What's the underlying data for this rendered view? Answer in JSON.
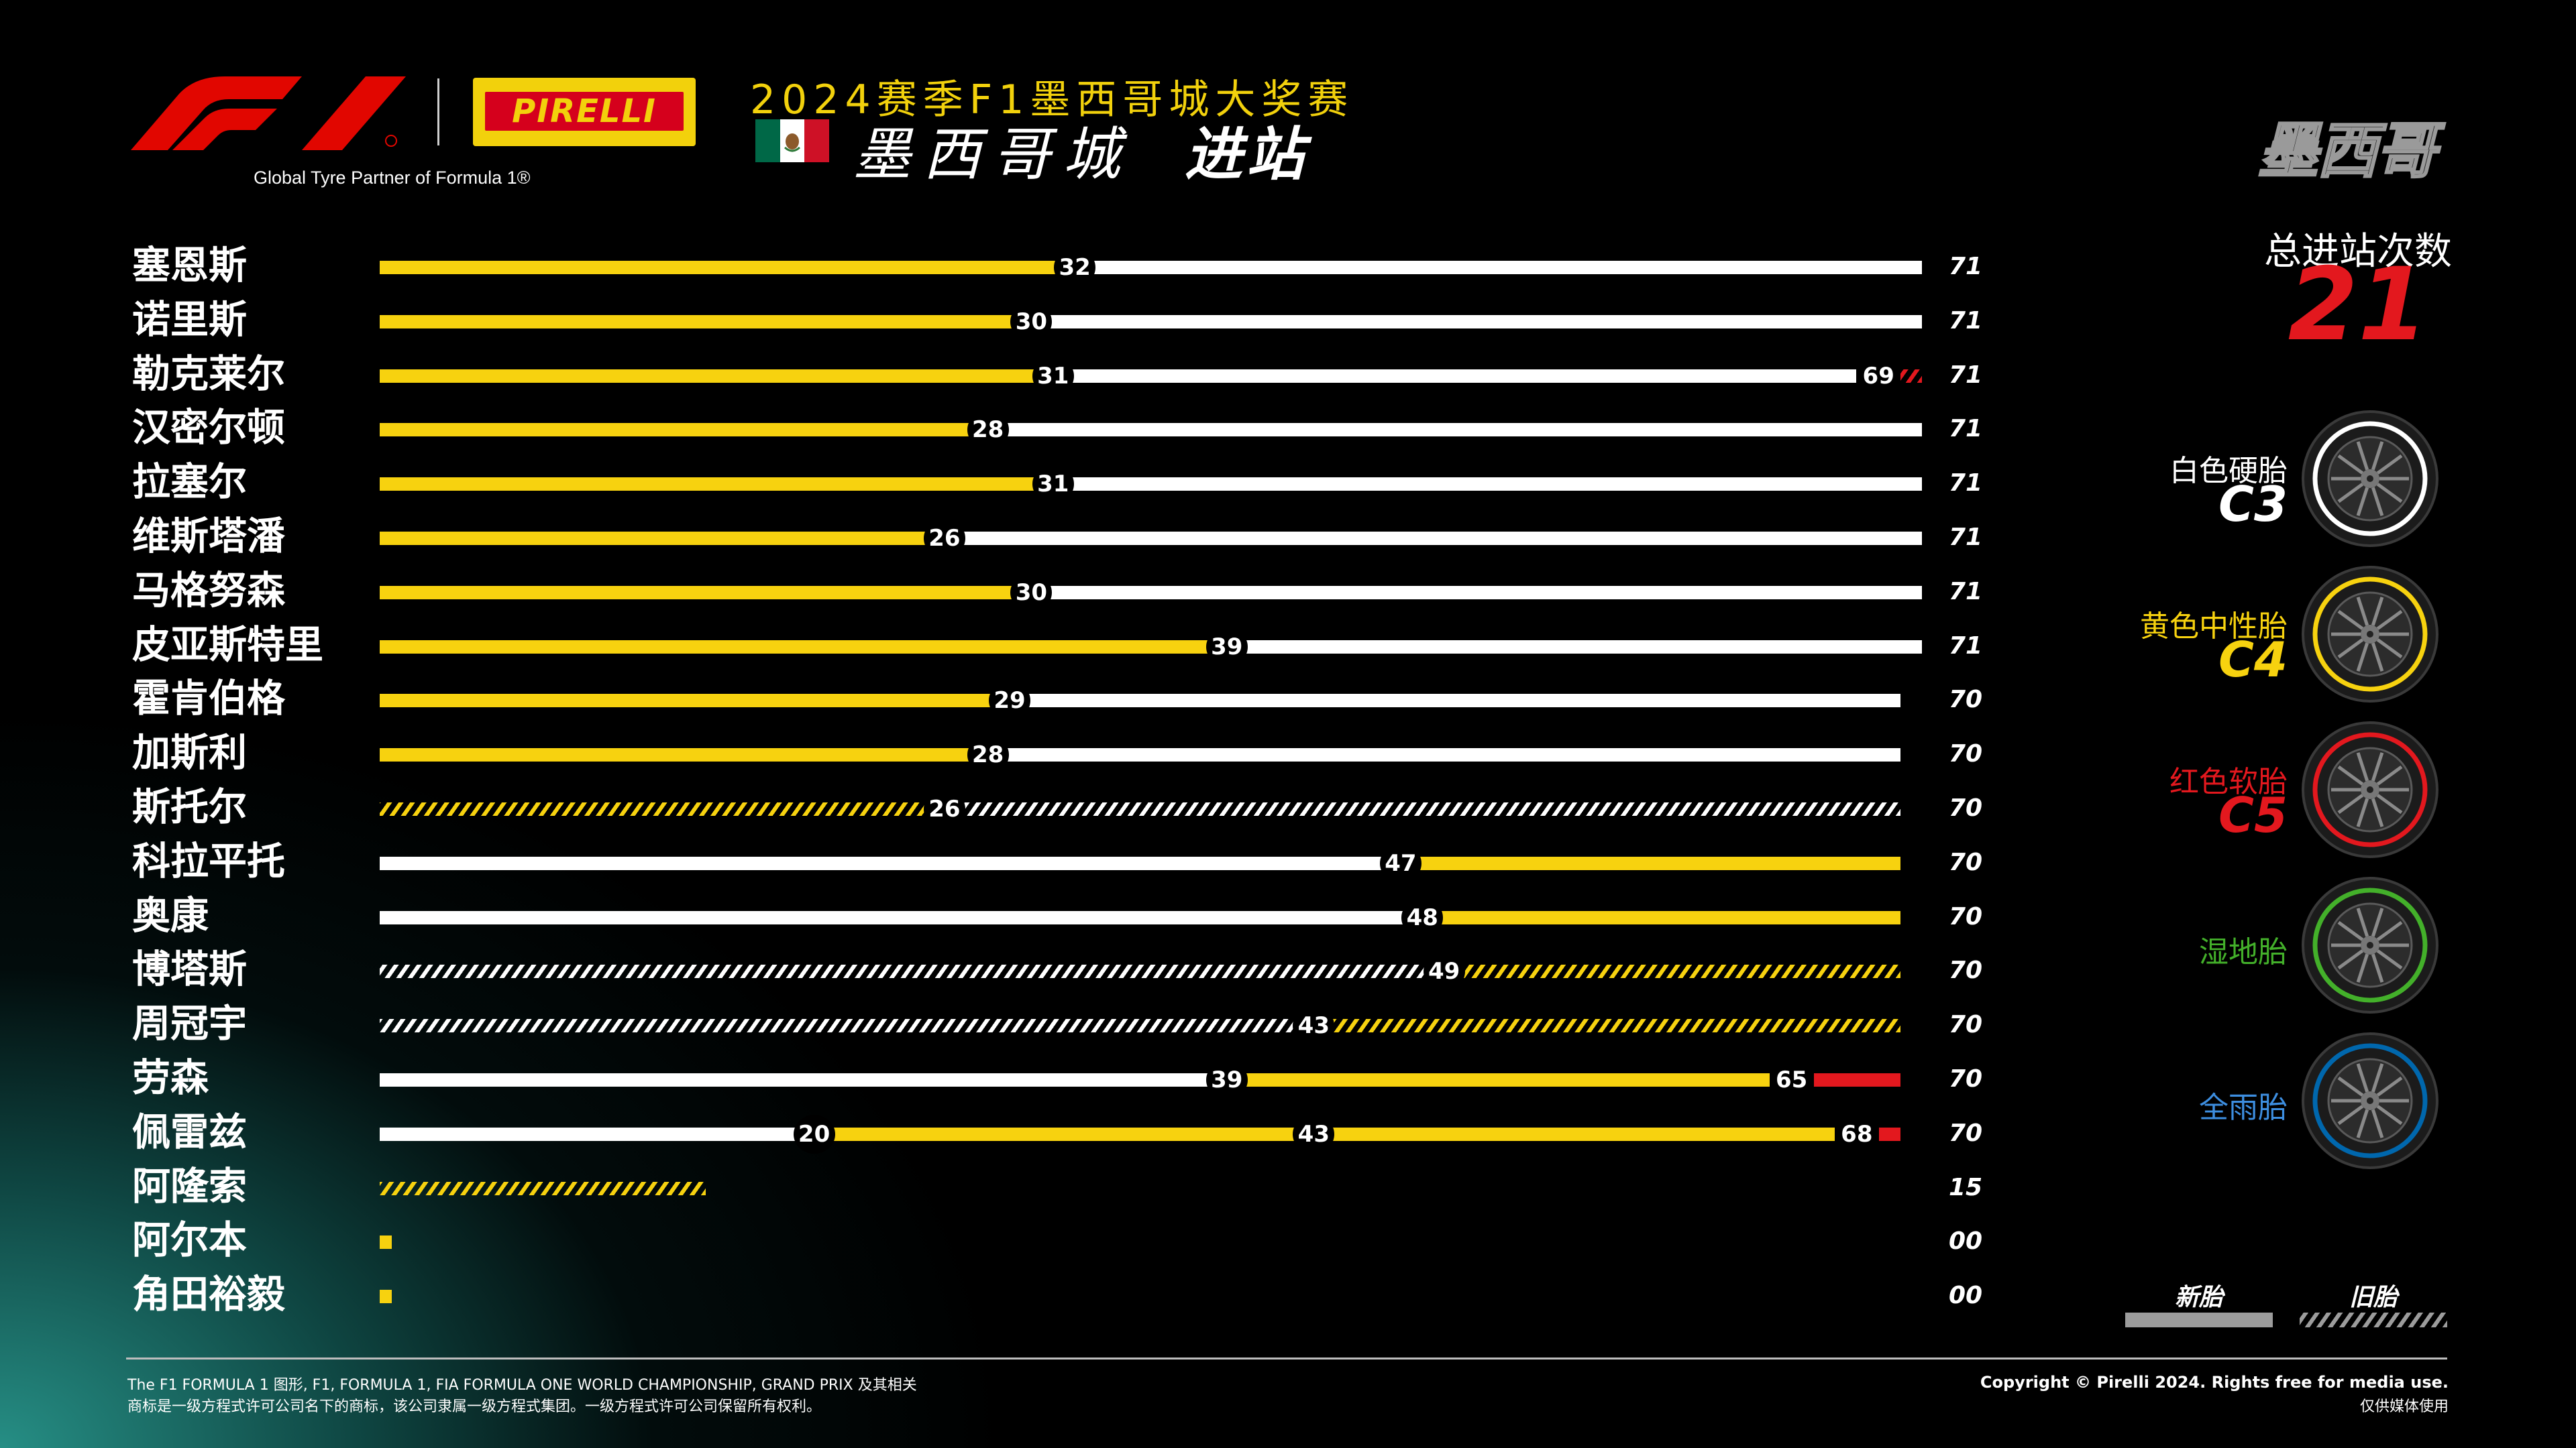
{
  "header": {
    "partner_text": "Global Tyre Partner of Formula 1®",
    "race_title": "2024赛季F1墨西哥城大奖赛",
    "city_name": "墨西哥城",
    "page_subtitle": "进站",
    "country_badge": "墨西哥",
    "pirelli_word": "PIRELLI"
  },
  "summary": {
    "stops_label": "总进站次数",
    "stops_value": "21"
  },
  "legend": {
    "compounds": [
      {
        "label": "白色硬胎",
        "code": "C3",
        "color": "#ffffff",
        "label_color": "#ffffff",
        "tyre_icon": "hard-tyre-icon"
      },
      {
        "label": "黄色中性胎",
        "code": "C4",
        "color": "#f7d20f",
        "label_color": "#f7d20f",
        "tyre_icon": "medium-tyre-icon"
      },
      {
        "label": "红色软胎",
        "code": "C5",
        "color": "#e3181e",
        "label_color": "#e3181e",
        "tyre_icon": "soft-tyre-icon"
      },
      {
        "label": "湿地胎",
        "code": "",
        "color": "#43b02a",
        "label_color": "#43b02a",
        "tyre_icon": "intermediate-tyre-icon"
      },
      {
        "label": "全雨胎",
        "code": "",
        "color": "#0067ad",
        "label_color": "#3d8ee0",
        "tyre_icon": "wet-tyre-icon"
      }
    ],
    "new_label": "新胎",
    "used_label": "旧胎"
  },
  "chart_data": {
    "type": "bar",
    "x_unit": "laps",
    "xlim": [
      0,
      71
    ],
    "rows": [
      {
        "driver": "塞恩斯",
        "total_laps": "71",
        "stops": [
          32
        ],
        "stints": [
          {
            "compound": "C4",
            "new": true,
            "from": 0,
            "to": 32
          },
          {
            "compound": "C3",
            "new": true,
            "from": 32,
            "to": 71
          }
        ]
      },
      {
        "driver": "诺里斯",
        "total_laps": "71",
        "stops": [
          30
        ],
        "stints": [
          {
            "compound": "C4",
            "new": true,
            "from": 0,
            "to": 30
          },
          {
            "compound": "C3",
            "new": true,
            "from": 30,
            "to": 71
          }
        ]
      },
      {
        "driver": "勒克莱尔",
        "total_laps": "71",
        "stops": [
          31,
          69
        ],
        "stints": [
          {
            "compound": "C4",
            "new": true,
            "from": 0,
            "to": 31
          },
          {
            "compound": "C3",
            "new": true,
            "from": 31,
            "to": 69
          },
          {
            "compound": "C5",
            "new": false,
            "from": 69,
            "to": 71
          }
        ]
      },
      {
        "driver": "汉密尔顿",
        "total_laps": "71",
        "stops": [
          28
        ],
        "stints": [
          {
            "compound": "C4",
            "new": true,
            "from": 0,
            "to": 28
          },
          {
            "compound": "C3",
            "new": true,
            "from": 28,
            "to": 71
          }
        ]
      },
      {
        "driver": "拉塞尔",
        "total_laps": "71",
        "stops": [
          31
        ],
        "stints": [
          {
            "compound": "C4",
            "new": true,
            "from": 0,
            "to": 31
          },
          {
            "compound": "C3",
            "new": true,
            "from": 31,
            "to": 71
          }
        ]
      },
      {
        "driver": "维斯塔潘",
        "total_laps": "71",
        "stops": [
          26
        ],
        "stints": [
          {
            "compound": "C4",
            "new": true,
            "from": 0,
            "to": 26
          },
          {
            "compound": "C3",
            "new": true,
            "from": 26,
            "to": 71
          }
        ]
      },
      {
        "driver": "马格努森",
        "total_laps": "71",
        "stops": [
          30
        ],
        "stints": [
          {
            "compound": "C4",
            "new": true,
            "from": 0,
            "to": 30
          },
          {
            "compound": "C3",
            "new": true,
            "from": 30,
            "to": 71
          }
        ]
      },
      {
        "driver": "皮亚斯特里",
        "total_laps": "71",
        "stops": [
          39
        ],
        "stints": [
          {
            "compound": "C4",
            "new": true,
            "from": 0,
            "to": 39
          },
          {
            "compound": "C3",
            "new": true,
            "from": 39,
            "to": 71
          }
        ]
      },
      {
        "driver": "霍肯伯格",
        "total_laps": "70",
        "stops": [
          29
        ],
        "stints": [
          {
            "compound": "C4",
            "new": true,
            "from": 0,
            "to": 29
          },
          {
            "compound": "C3",
            "new": true,
            "from": 29,
            "to": 70
          }
        ]
      },
      {
        "driver": "加斯利",
        "total_laps": "70",
        "stops": [
          28
        ],
        "stints": [
          {
            "compound": "C4",
            "new": true,
            "from": 0,
            "to": 28
          },
          {
            "compound": "C3",
            "new": true,
            "from": 28,
            "to": 70
          }
        ]
      },
      {
        "driver": "斯托尔",
        "total_laps": "70",
        "stops": [
          26
        ],
        "stints": [
          {
            "compound": "C4",
            "new": false,
            "from": 0,
            "to": 26
          },
          {
            "compound": "C3",
            "new": false,
            "from": 26,
            "to": 70
          }
        ]
      },
      {
        "driver": "科拉平托",
        "total_laps": "70",
        "stops": [
          47
        ],
        "stints": [
          {
            "compound": "C3",
            "new": true,
            "from": 0,
            "to": 47
          },
          {
            "compound": "C4",
            "new": true,
            "from": 47,
            "to": 70
          }
        ]
      },
      {
        "driver": "奥康",
        "total_laps": "70",
        "stops": [
          48
        ],
        "stints": [
          {
            "compound": "C3",
            "new": true,
            "from": 0,
            "to": 48
          },
          {
            "compound": "C4",
            "new": true,
            "from": 48,
            "to": 70
          }
        ]
      },
      {
        "driver": "博塔斯",
        "total_laps": "70",
        "stops": [
          49
        ],
        "stints": [
          {
            "compound": "C3",
            "new": false,
            "from": 0,
            "to": 49
          },
          {
            "compound": "C4",
            "new": false,
            "from": 49,
            "to": 70
          }
        ]
      },
      {
        "driver": "周冠宇",
        "total_laps": "70",
        "stops": [
          43
        ],
        "stints": [
          {
            "compound": "C3",
            "new": false,
            "from": 0,
            "to": 43
          },
          {
            "compound": "C4",
            "new": false,
            "from": 43,
            "to": 70
          }
        ]
      },
      {
        "driver": "劳森",
        "total_laps": "70",
        "stops": [
          39,
          65
        ],
        "stints": [
          {
            "compound": "C3",
            "new": true,
            "from": 0,
            "to": 39
          },
          {
            "compound": "C4",
            "new": true,
            "from": 39,
            "to": 65
          },
          {
            "compound": "C5",
            "new": true,
            "from": 65,
            "to": 70
          }
        ]
      },
      {
        "driver": "佩雷兹",
        "total_laps": "70",
        "stops": [
          20,
          43,
          68
        ],
        "stints": [
          {
            "compound": "C3",
            "new": true,
            "from": 0,
            "to": 20
          },
          {
            "compound": "C4",
            "new": true,
            "from": 20,
            "to": 43
          },
          {
            "compound": "C4",
            "new": true,
            "from": 43,
            "to": 68
          },
          {
            "compound": "C5",
            "new": true,
            "from": 68,
            "to": 70
          }
        ]
      },
      {
        "driver": "阿隆索",
        "total_laps": "15",
        "stops": [],
        "stints": [
          {
            "compound": "C4",
            "new": false,
            "from": 0,
            "to": 15
          }
        ]
      },
      {
        "driver": "阿尔本",
        "total_laps": "00",
        "stops": [],
        "stints": [
          {
            "compound": "C4",
            "new": true,
            "from": 0,
            "to": 0
          }
        ]
      },
      {
        "driver": "角田裕毅",
        "total_laps": "00",
        "stops": [],
        "stints": [
          {
            "compound": "C4",
            "new": true,
            "from": 0,
            "to": 0
          }
        ]
      }
    ]
  },
  "footer": {
    "legal_line_1": "The F1 FORMULA 1 图形, F1, FORMULA 1, FIA FORMULA ONE WORLD CHAMPIONSHIP, GRAND PRIX 及其相关",
    "legal_line_2": "商标是一级方程式许可公司名下的商标，该公司隶属一级方程式集团。一级方程式许可公司保留所有权利。",
    "copyright": "Copyright © Pirelli 2024. Rights free for media use.",
    "media_note": "仅供媒体使用"
  }
}
